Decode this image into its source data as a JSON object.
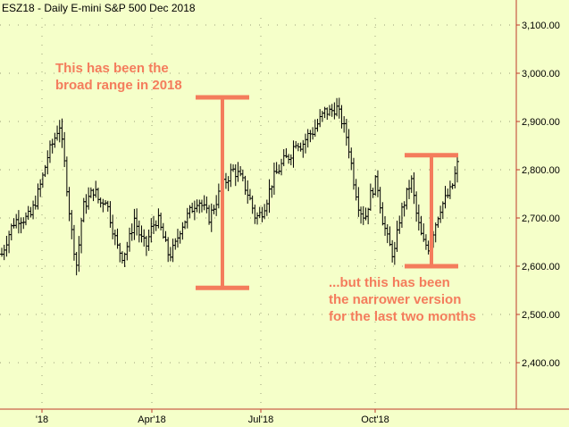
{
  "chart_data": {
    "type": "ohlc",
    "title": "ESZ18 - Daily  E-mini S&P 500 Dec 2018",
    "ylim": [
      2320,
      3160
    ],
    "y_ticks": [
      2400,
      2500,
      2600,
      2700,
      2800,
      2900,
      3000,
      3100
    ],
    "y_tick_labels": [
      "2,400.00",
      "2,500.00",
      "2,600.00",
      "2,700.00",
      "2,800.00",
      "2,900.00",
      "3,000.00",
      "3,100.00"
    ],
    "x_tick_labels": [
      "'18",
      "Apr'18",
      "Jul'18",
      "Oct'18"
    ],
    "grid": true,
    "colors": {
      "background": "#f5ffc9",
      "bars": "#000000",
      "annotation": "#f47c5c",
      "axis": "#c0392b"
    },
    "price_path_closes": [
      2625,
      2660,
      2690,
      2700,
      2698,
      2705,
      2740,
      2780,
      2830,
      2860,
      2895,
      2800,
      2680,
      2600,
      2720,
      2740,
      2760,
      2730,
      2740,
      2690,
      2640,
      2620,
      2650,
      2700,
      2660,
      2640,
      2680,
      2700,
      2660,
      2620,
      2640,
      2680,
      2700,
      2720,
      2740,
      2720,
      2700,
      2730,
      2760,
      2780,
      2800,
      2790,
      2770,
      2740,
      2700,
      2710,
      2740,
      2780,
      2800,
      2820,
      2830,
      2860,
      2850,
      2870,
      2880,
      2900,
      2920,
      2920,
      2930,
      2900,
      2860,
      2780,
      2720,
      2700,
      2750,
      2780,
      2700,
      2650,
      2620,
      2700,
      2740,
      2780,
      2700,
      2650,
      2640,
      2680,
      2720,
      2740,
      2760,
      2810
    ],
    "annotations": [
      {
        "lines": [
          "This has been the",
          "broad range in 2018"
        ],
        "range": [
          2555,
          2950
        ]
      },
      {
        "lines": [
          "...but this has been",
          "the narrower version",
          "for the last two months"
        ],
        "range": [
          2600,
          2830
        ]
      }
    ]
  }
}
